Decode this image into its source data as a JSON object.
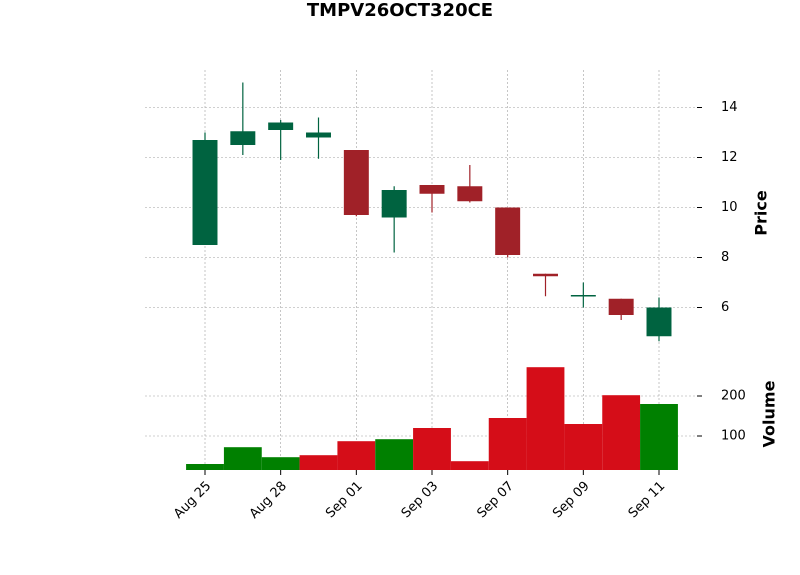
{
  "chart_data": {
    "type": "candlestick",
    "title": "TMPV26OCT320CE",
    "categories": [
      "Aug 25",
      null,
      "Aug 28",
      null,
      "Sep 01",
      null,
      "Sep 03",
      null,
      "Sep 07",
      null,
      "Sep 09",
      null,
      "Sep 11"
    ],
    "open": [
      8.5,
      12.5,
      13.1,
      12.8,
      12.3,
      9.6,
      10.9,
      10.85,
      10.0,
      7.35,
      6.45,
      6.35,
      4.85
    ],
    "high": [
      13.0,
      15.0,
      13.5,
      13.6,
      12.3,
      10.85,
      10.9,
      11.7,
      10.0,
      7.35,
      7.0,
      6.35,
      6.4
    ],
    "low": [
      8.5,
      12.1,
      11.9,
      11.95,
      9.65,
      8.2,
      9.8,
      10.2,
      8.0,
      6.45,
      6.0,
      5.5,
      4.65
    ],
    "close": [
      12.7,
      13.05,
      13.4,
      13.0,
      9.7,
      10.7,
      10.55,
      10.25,
      8.1,
      7.25,
      6.5,
      5.7,
      6.0
    ],
    "candle_colors": {
      "up": "#006340",
      "down": "#a02128"
    },
    "ylabel": "Price",
    "ylim": [
      4.1,
      15.5
    ],
    "yticks": [
      6,
      8,
      10,
      12,
      14
    ],
    "grid": true,
    "volume": {
      "label": "Volume",
      "values": [
        30,
        72,
        47,
        52,
        87,
        92,
        120,
        37,
        145,
        272,
        130,
        202,
        180
      ],
      "colors": {
        "up": "#008000",
        "down": "#d50d18"
      },
      "ylim": [
        15,
        295
      ],
      "yticks": [
        100,
        200
      ]
    }
  }
}
